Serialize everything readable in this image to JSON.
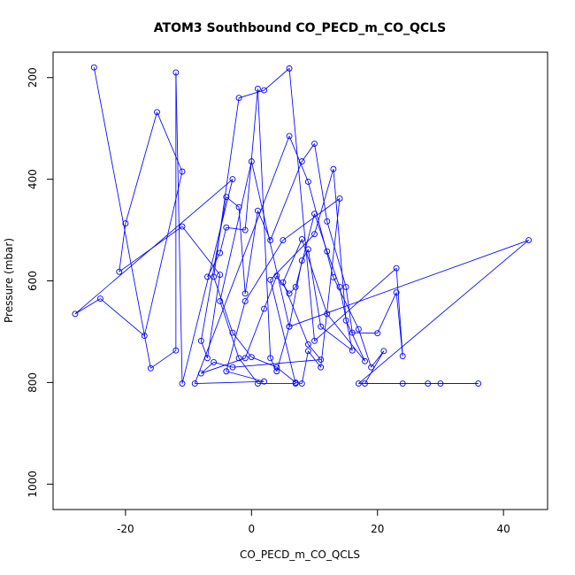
{
  "chart_data": {
    "type": "line",
    "title": "ATOM3 Southbound CO_PECD_m_CO_QCLS",
    "xlabel": "CO_PECD_m_CO_QCLS",
    "ylabel": "Pressure (mbar)",
    "xlim": [
      -31.5,
      47
    ],
    "ylim": [
      1050,
      150
    ],
    "y_inverted": true,
    "x_ticks": [
      -20,
      0,
      20,
      40
    ],
    "x_tick_labels": [
      "-20",
      "0",
      "20",
      "40"
    ],
    "y_ticks": [
      200,
      400,
      600,
      800,
      1000
    ],
    "y_tick_labels": [
      "200",
      "400",
      "600",
      "800",
      "1000"
    ],
    "grid": false,
    "legend": "none",
    "series_color": "#0000ff",
    "series": [
      {
        "points": [
          [
            -25,
            180
          ],
          [
            -16,
            772
          ],
          [
            -12,
            737
          ],
          [
            -12,
            190
          ],
          [
            -11,
            802
          ],
          [
            -3,
            400
          ],
          [
            -28,
            665
          ],
          [
            -24,
            635
          ],
          [
            -17,
            708
          ],
          [
            -11,
            385
          ],
          [
            -15,
            268
          ],
          [
            -20,
            487
          ],
          [
            -21,
            582
          ],
          [
            -11,
            493
          ],
          [
            -5,
            588
          ],
          [
            -7,
            752
          ],
          [
            -8,
            718
          ],
          [
            -4,
            435
          ],
          [
            -2,
            455
          ],
          [
            -1,
            625
          ],
          [
            1,
            462
          ],
          [
            3,
            520
          ],
          [
            8,
            365
          ],
          [
            10,
            330
          ],
          [
            12,
            483
          ],
          [
            15,
            612
          ],
          [
            16,
            702
          ],
          [
            20,
            703
          ],
          [
            23,
            623
          ],
          [
            24,
            748
          ],
          [
            23,
            575
          ],
          [
            10,
            718
          ],
          [
            6,
            182
          ],
          [
            2,
            225
          ],
          [
            -2,
            240
          ],
          [
            -6,
            592
          ],
          [
            -3,
            702
          ],
          [
            0,
            750
          ],
          [
            4,
            770
          ],
          [
            7,
            800
          ],
          [
            8,
            802
          ],
          [
            9,
            738
          ],
          [
            11,
            770
          ],
          [
            14,
            438
          ],
          [
            5,
            520
          ],
          [
            -1,
            640
          ],
          [
            -4,
            778
          ],
          [
            2,
            798
          ],
          [
            -9,
            802
          ],
          [
            6,
            315
          ],
          [
            9,
            405
          ],
          [
            13,
            593
          ],
          [
            17,
            695
          ],
          [
            19,
            770
          ],
          [
            21,
            738
          ],
          [
            18,
            802
          ],
          [
            24,
            802
          ],
          [
            30,
            802
          ],
          [
            36,
            802
          ],
          [
            28,
            802
          ],
          [
            17,
            802
          ],
          [
            44,
            520
          ],
          [
            6,
            690
          ],
          [
            0,
            365
          ],
          [
            -5,
            640
          ],
          [
            -2,
            752
          ],
          [
            1,
            802
          ],
          [
            7,
            802
          ],
          [
            3,
            598
          ],
          [
            10,
            508
          ],
          [
            13,
            380
          ],
          [
            15,
            678
          ],
          [
            18,
            758
          ],
          [
            12,
            665
          ],
          [
            8,
            518
          ],
          [
            5,
            603
          ],
          [
            9,
            725
          ],
          [
            11,
            755
          ],
          [
            -3,
            770
          ],
          [
            -6,
            760
          ],
          [
            -8,
            782
          ],
          [
            -1,
            752
          ],
          [
            2,
            655
          ],
          [
            4,
            590
          ],
          [
            6,
            625
          ],
          [
            7,
            612
          ],
          [
            10,
            468
          ],
          [
            12,
            542
          ],
          [
            14,
            612
          ],
          [
            16,
            737
          ],
          [
            11,
            690
          ],
          [
            9,
            538
          ],
          [
            8,
            560
          ],
          [
            6,
            690
          ],
          [
            4,
            778
          ],
          [
            3,
            752
          ],
          [
            1,
            222
          ],
          [
            -1,
            500
          ],
          [
            -4,
            495
          ],
          [
            -5,
            545
          ],
          [
            -7,
            592
          ]
        ]
      }
    ]
  }
}
